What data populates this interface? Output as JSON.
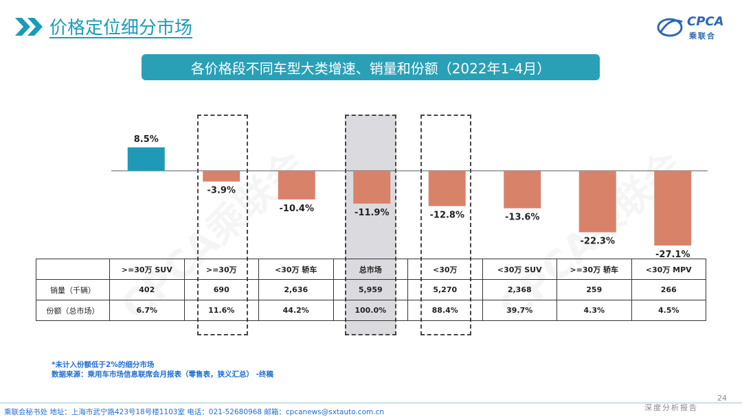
{
  "header": {
    "page_title": "价格定位细分市场",
    "logo_text": "CPCA",
    "logo_sub": "乘联合"
  },
  "banner": {
    "text": "各价格段不同车型大类增速、销量和份额（2022年1-4月）"
  },
  "watermark": {
    "text": "CPCA乘联会"
  },
  "colors": {
    "positive": "#1f9ab6",
    "negative": "#d9826a",
    "accent": "#2aa0b6",
    "link": "#1f6ed2"
  },
  "chart_data": {
    "type": "bar",
    "title": "各价格段不同车型大类增速、销量和份额（2022年1-4月）",
    "categories": [
      ">=30万 SUV",
      ">=30万",
      "<30万 轿车",
      "总市场",
      "<30万",
      "<30万 SUV",
      ">=30万 轿车",
      "<30万 MPV"
    ],
    "series": [
      {
        "name": "增速",
        "values": [
          8.5,
          -3.9,
          -10.4,
          -11.9,
          -12.8,
          -13.6,
          -22.3,
          -27.1
        ]
      }
    ],
    "value_labels": [
      "8.5%",
      "-3.9%",
      "-10.4%",
      "-11.9%",
      "-12.8%",
      "-13.6%",
      "-22.3%",
      "-27.1%"
    ],
    "highlighted": [
      ">=30万",
      "总市场",
      "<30万"
    ],
    "ylabel": "",
    "xlabel": "",
    "ylim": [
      -30,
      10
    ],
    "grid": false
  },
  "table": {
    "header_label": "",
    "columns": [
      ">=30万 SUV",
      ">=30万",
      "<30万 轿车",
      "总市场",
      "<30万",
      "<30万 SUV",
      ">=30万 轿车",
      "<30万 MPV"
    ],
    "rows": [
      {
        "label": "销量（千辆）",
        "cells": [
          "402",
          "690",
          "2,636",
          "5,959",
          "5,270",
          "2,368",
          "259",
          "266"
        ]
      },
      {
        "label": "份额（总市场）",
        "cells": [
          "6.7%",
          "11.6%",
          "44.2%",
          "100.0%",
          "88.4%",
          "39.7%",
          "4.3%",
          "4.5%"
        ]
      }
    ]
  },
  "footnote": {
    "line1": "*未计入份额低于2%的细分市场",
    "line2": "数据来源：乘用车市场信息联席会月报表（零售表，狭义汇总） -终稿"
  },
  "footer": {
    "text": "乘联会秘书处   地址：上海市武宁路423号18号楼1103室  电话：021-52680968  邮箱：cpcanews@sxtauto.com.cn",
    "page_number": "24",
    "tagline": "深度分析报告"
  }
}
